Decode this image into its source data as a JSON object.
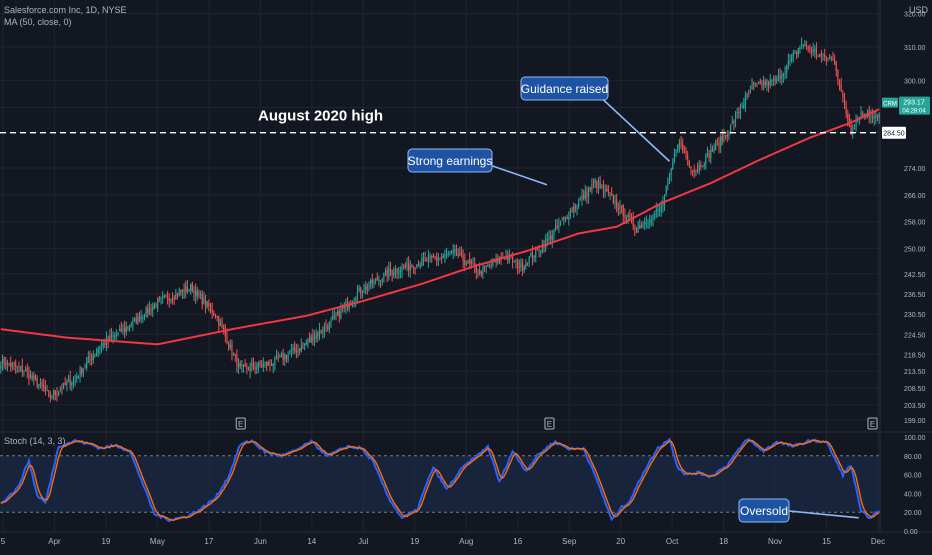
{
  "header": {
    "symbol_line": "Salesforce.com Inc, 1D, NYSE",
    "ma_line": "MA (50, close, 0)",
    "currency": "USD",
    "stoch_label": "Stoch (14, 3, 3)"
  },
  "colors": {
    "background": "#131722",
    "up": "#26a69a",
    "down": "#ef5350",
    "ma": "#f23645",
    "k_line": "#2962ff",
    "d_line": "#ff6d00",
    "callout_fill": "#1e53a3",
    "callout_border": "#90b8f8",
    "grid": "#1f2430",
    "axis_text": "#b2b5be",
    "band_fill": "#1b2a44"
  },
  "chart_data": {
    "type": "candlestick",
    "price_ylim": [
      196,
      324
    ],
    "price_ticks": [
      199.0,
      203.5,
      208.5,
      213.5,
      218.5,
      224.5,
      230.5,
      236.5,
      242.5,
      250.0,
      258.0,
      266.0,
      274.0,
      284.5,
      292.0,
      300.0,
      310.0,
      320.0
    ],
    "x_labels": [
      "5",
      "Apr",
      "19",
      "May",
      "17",
      "Jun",
      "14",
      "Jul",
      "19",
      "Aug",
      "16",
      "Sep",
      "20",
      "Oct",
      "18",
      "Nov",
      "15",
      "Dec"
    ],
    "last_price": {
      "label": "CRM",
      "value": "293.17",
      "countdown": "04:28:04"
    },
    "august_2020_high": {
      "value": 284.5,
      "text": "August 2020 high"
    },
    "ma_anchors": [
      [
        0,
        226.0
      ],
      [
        40,
        223.5
      ],
      [
        95,
        221.5
      ],
      [
        140,
        226.0
      ],
      [
        185,
        230.0
      ],
      [
        220,
        234.5
      ],
      [
        255,
        239.5
      ],
      [
        285,
        244.5
      ],
      [
        320,
        249.5
      ],
      [
        350,
        254.5
      ],
      [
        373,
        256.5
      ],
      [
        400,
        263.5
      ],
      [
        430,
        269.5
      ],
      [
        460,
        276.5
      ],
      [
        490,
        283.0
      ],
      [
        515,
        287.5
      ],
      [
        532,
        291.5
      ]
    ],
    "close_anchors": [
      [
        0,
        216.5
      ],
      [
        15,
        213.5
      ],
      [
        30,
        206.0
      ],
      [
        45,
        211.5
      ],
      [
        60,
        221.0
      ],
      [
        75,
        226.0
      ],
      [
        95,
        234.0
      ],
      [
        115,
        238.5
      ],
      [
        130,
        230.5
      ],
      [
        145,
        214.0
      ],
      [
        165,
        216.0
      ],
      [
        180,
        220.0
      ],
      [
        200,
        228.0
      ],
      [
        215,
        236.5
      ],
      [
        235,
        243.0
      ],
      [
        255,
        246.0
      ],
      [
        275,
        248.5
      ],
      [
        290,
        243.0
      ],
      [
        305,
        248.0
      ],
      [
        315,
        244.5
      ],
      [
        330,
        252.0
      ],
      [
        345,
        261.0
      ],
      [
        360,
        269.5
      ],
      [
        370,
        265.0
      ],
      [
        385,
        256.0
      ],
      [
        400,
        262.0
      ],
      [
        405,
        271.0
      ],
      [
        410,
        282.0
      ],
      [
        420,
        273.0
      ],
      [
        440,
        284.5
      ],
      [
        455,
        298.0
      ],
      [
        470,
        300.0
      ],
      [
        485,
        311.0
      ],
      [
        498,
        307.0
      ],
      [
        505,
        306.0
      ],
      [
        510,
        294.0
      ],
      [
        515,
        285.0
      ],
      [
        520,
        290.0
      ]
    ],
    "earnings_markers": {
      "label": "E",
      "candles": [
        145,
        332,
        533
      ]
    },
    "annotations": [
      {
        "text": "Strong earnings",
        "candle": 332
      },
      {
        "text": "Guidance raised",
        "candle": 405
      },
      {
        "text": "Oversold",
        "candle": 522
      }
    ],
    "stoch": {
      "ylim": [
        0,
        100
      ],
      "ticks": [
        0.0,
        20.0,
        40.0,
        60.0,
        80.0,
        100.0
      ],
      "band": [
        20,
        80
      ],
      "k_anchors": [
        [
          0,
          30
        ],
        [
          10,
          45
        ],
        [
          17,
          75
        ],
        [
          22,
          38
        ],
        [
          27,
          30
        ],
        [
          35,
          90
        ],
        [
          45,
          96
        ],
        [
          55,
          92
        ],
        [
          60,
          88
        ],
        [
          70,
          91
        ],
        [
          78,
          85
        ],
        [
          85,
          55
        ],
        [
          93,
          18
        ],
        [
          102,
          12
        ],
        [
          112,
          15
        ],
        [
          120,
          22
        ],
        [
          130,
          35
        ],
        [
          138,
          58
        ],
        [
          145,
          92
        ],
        [
          152,
          96
        ],
        [
          160,
          84
        ],
        [
          170,
          80
        ],
        [
          178,
          85
        ],
        [
          188,
          95
        ],
        [
          198,
          80
        ],
        [
          210,
          90
        ],
        [
          218,
          88
        ],
        [
          225,
          75
        ],
        [
          235,
          35
        ],
        [
          243,
          14
        ],
        [
          252,
          22
        ],
        [
          258,
          50
        ],
        [
          262,
          68
        ],
        [
          270,
          44
        ],
        [
          280,
          68
        ],
        [
          290,
          82
        ],
        [
          295,
          90
        ],
        [
          302,
          52
        ],
        [
          310,
          85
        ],
        [
          318,
          64
        ],
        [
          325,
          80
        ],
        [
          335,
          95
        ],
        [
          345,
          87
        ],
        [
          353,
          88
        ],
        [
          362,
          50
        ],
        [
          370,
          12
        ],
        [
          376,
          25
        ],
        [
          381,
          32
        ],
        [
          390,
          65
        ],
        [
          398,
          88
        ],
        [
          405,
          98
        ],
        [
          410,
          68
        ],
        [
          415,
          60
        ],
        [
          422,
          62
        ],
        [
          430,
          58
        ],
        [
          440,
          70
        ],
        [
          452,
          98
        ],
        [
          462,
          85
        ],
        [
          470,
          95
        ],
        [
          480,
          90
        ],
        [
          490,
          96
        ],
        [
          500,
          95
        ],
        [
          510,
          60
        ],
        [
          515,
          70
        ],
        [
          521,
          20
        ],
        [
          527,
          14
        ],
        [
          532,
          22
        ]
      ],
      "d_lag_candles": 3
    }
  }
}
